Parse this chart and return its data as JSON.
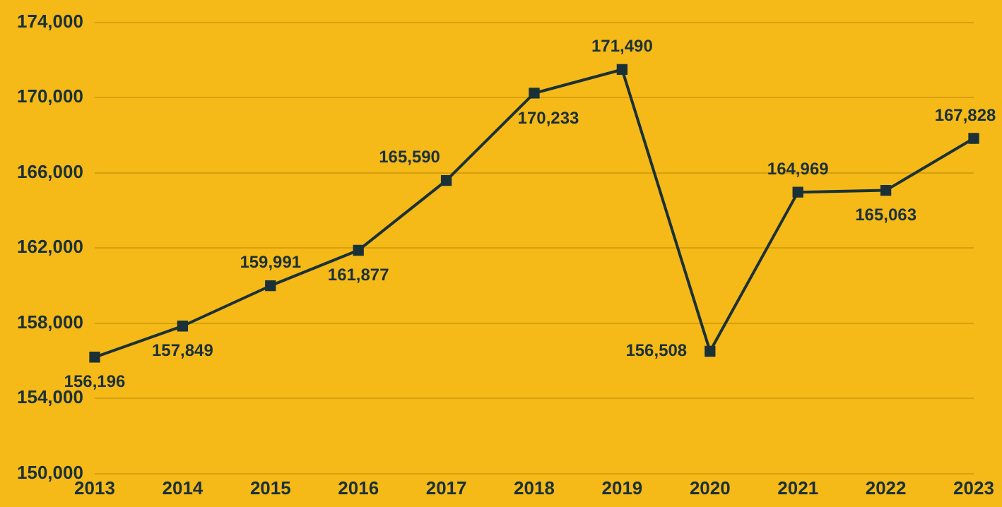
{
  "chart_data": {
    "type": "line",
    "categories": [
      "2013",
      "2014",
      "2015",
      "2016",
      "2017",
      "2018",
      "2019",
      "2020",
      "2021",
      "2022",
      "2023"
    ],
    "series": [
      {
        "color": "#1b3138",
        "values": [
          156196,
          157849,
          159991,
          161877,
          165590,
          170233,
          171490,
          156508,
          164969,
          165063,
          167828
        ],
        "value_labels": [
          "156,196",
          "157,849",
          "159,991",
          "161,877",
          "165,590",
          "170,233",
          "171,490",
          "156,508",
          "164,969",
          "165,063",
          "167,828"
        ]
      }
    ],
    "ylim": [
      150000,
      174000
    ],
    "yticks": [
      {
        "value": 150000,
        "label": "150,000"
      },
      {
        "value": 154000,
        "label": "154,000"
      },
      {
        "value": 158000,
        "label": "158,000"
      },
      {
        "value": 162000,
        "label": "162,000"
      },
      {
        "value": 166000,
        "label": "166,000"
      },
      {
        "value": 170000,
        "label": "170,000"
      },
      {
        "value": 174000,
        "label": "174,000"
      }
    ],
    "grid": "y",
    "legend": false,
    "marker": "square",
    "line_style": "solid"
  }
}
